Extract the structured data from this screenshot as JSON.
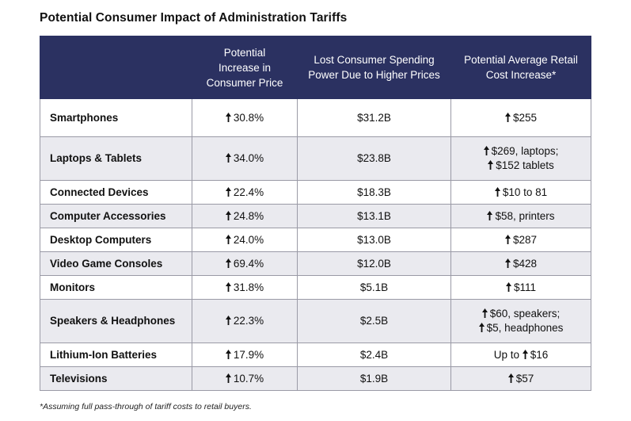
{
  "title": "Potential Consumer Impact of Administration Tariffs",
  "table": {
    "headers": [
      "",
      "Potential Increase in Consumer Price",
      "Lost Consumer Spending Power Due to Higher Prices",
      "Potential Average Retail Cost Increase*"
    ],
    "rows": [
      {
        "category": "Smartphones",
        "price_increase": "30.8%",
        "lost_spending": "$31.2B",
        "retail_increase": "$255"
      },
      {
        "category": "Laptops & Tablets",
        "price_increase": "34.0%",
        "lost_spending": "$23.8B",
        "retail_increase_1": "$269, laptops;",
        "retail_increase_2": "$152 tablets"
      },
      {
        "category": "Connected Devices",
        "price_increase": "22.4%",
        "lost_spending": "$18.3B",
        "retail_increase": "$10 to 81"
      },
      {
        "category": "Computer Accessories",
        "price_increase": "24.8%",
        "lost_spending": "$13.1B",
        "retail_increase": "$58, printers"
      },
      {
        "category": "Desktop Computers",
        "price_increase": "24.0%",
        "lost_spending": "$13.0B",
        "retail_increase": "$287"
      },
      {
        "category": "Video Game Consoles",
        "price_increase": "69.4%",
        "lost_spending": "$12.0B",
        "retail_increase": "$428"
      },
      {
        "category": "Monitors",
        "price_increase": "31.8%",
        "lost_spending": "$5.1B",
        "retail_increase": "$111"
      },
      {
        "category": "Speakers & Headphones",
        "price_increase": "22.3%",
        "lost_spending": "$2.5B",
        "retail_increase_1": "$60, speakers;",
        "retail_increase_2": "$5, headphones"
      },
      {
        "category": "Lithium-Ion Batteries",
        "price_increase": "17.9%",
        "lost_spending": "$2.4B",
        "retail_prefix": "Up to",
        "retail_increase": "$16"
      },
      {
        "category": "Televisions",
        "price_increase": "10.7%",
        "lost_spending": "$1.9B",
        "retail_increase": "$57"
      }
    ]
  },
  "footnote": "*Assuming full pass-through of tariff costs to retail buyers.",
  "icons": {
    "increase": "up-arrow-icon"
  },
  "colors": {
    "header_bg": "#2b3161",
    "header_text": "#ffffff",
    "stripe": "#eaeaef",
    "border": "#9a9aa6"
  }
}
